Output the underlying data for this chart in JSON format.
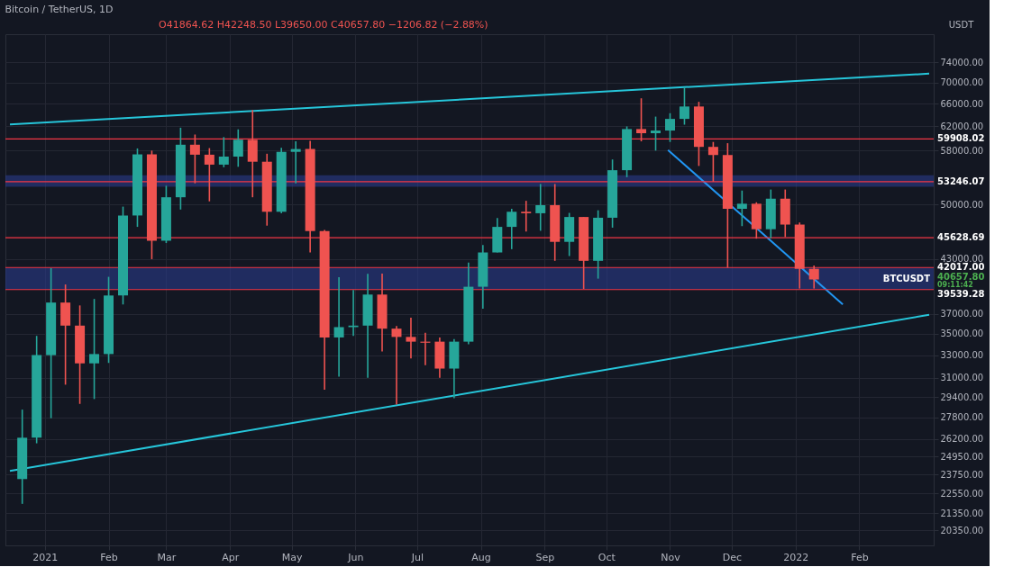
{
  "chart_data": {
    "type": "candlestick",
    "title": "Bitcoin / TetherUS, 1D",
    "ylabel": "USDT",
    "x": [
      "2020-12-21",
      "2020-12-28",
      "2021-01-04",
      "2021-01-11",
      "2021-01-18",
      "2021-01-25",
      "2021-02-01",
      "2021-02-08",
      "2021-02-15",
      "2021-02-22",
      "2021-03-01",
      "2021-03-08",
      "2021-03-15",
      "2021-03-22",
      "2021-03-29",
      "2021-04-05",
      "2021-04-12",
      "2021-04-19",
      "2021-04-26",
      "2021-05-03",
      "2021-05-10",
      "2021-05-17",
      "2021-05-24",
      "2021-05-31",
      "2021-06-07",
      "2021-06-14",
      "2021-06-21",
      "2021-06-28",
      "2021-07-05",
      "2021-07-12",
      "2021-07-19",
      "2021-07-26",
      "2021-08-02",
      "2021-08-09",
      "2021-08-16",
      "2021-08-23",
      "2021-08-30",
      "2021-09-06",
      "2021-09-13",
      "2021-09-20",
      "2021-09-27",
      "2021-10-04",
      "2021-10-11",
      "2021-10-18",
      "2021-10-25",
      "2021-11-01",
      "2021-11-08",
      "2021-11-15",
      "2021-11-22",
      "2021-11-29",
      "2021-12-06",
      "2021-12-13",
      "2021-12-20",
      "2021-12-27",
      "2022-01-03",
      "2022-01-10"
    ],
    "ohlc": [
      [
        23450,
        28400,
        21900,
        26280
      ],
      [
        26280,
        34800,
        25880,
        33000
      ],
      [
        33000,
        41950,
        27734,
        38150
      ],
      [
        38150,
        40100,
        30420,
        35800
      ],
      [
        35800,
        37850,
        28850,
        32260
      ],
      [
        32260,
        38530,
        29240,
        33100
      ],
      [
        33100,
        40955,
        32300,
        38900
      ],
      [
        38900,
        49700,
        37950,
        48500
      ],
      [
        48500,
        58350,
        47000,
        57400
      ],
      [
        57400,
        58000,
        43000,
        45240
      ],
      [
        45240,
        52640,
        44950,
        51000
      ],
      [
        51000,
        61780,
        49300,
        58950
      ],
      [
        58950,
        60630,
        53000,
        57350
      ],
      [
        57350,
        58400,
        50430,
        55800
      ],
      [
        55800,
        60200,
        55400,
        57050
      ],
      [
        57050,
        61500,
        55470,
        59750
      ],
      [
        59750,
        64850,
        51000,
        56250
      ],
      [
        56250,
        57500,
        47160,
        49000
      ],
      [
        49000,
        58450,
        48800,
        57800
      ],
      [
        57800,
        59500,
        53000,
        58250
      ],
      [
        58250,
        59600,
        43800,
        46450
      ],
      [
        46450,
        46600,
        30000,
        34650
      ],
      [
        34650,
        40900,
        31100,
        35650
      ],
      [
        35650,
        39500,
        34800,
        35800
      ],
      [
        35800,
        41300,
        31000,
        39000
      ],
      [
        39000,
        41330,
        33330,
        35500
      ],
      [
        35500,
        35750,
        28800,
        34700
      ],
      [
        34700,
        36600,
        32700,
        34250
      ],
      [
        34250,
        35100,
        32100,
        34150
      ],
      [
        34250,
        34650,
        31000,
        31800
      ],
      [
        31800,
        34500,
        29300,
        34250
      ],
      [
        34250,
        42600,
        34000,
        39850
      ],
      [
        39850,
        44700,
        37500,
        43800
      ],
      [
        43800,
        48150,
        43800,
        47000
      ],
      [
        47000,
        49400,
        44200,
        49000
      ],
      [
        49000,
        50500,
        46400,
        48800
      ],
      [
        48800,
        52900,
        46500,
        49900
      ],
      [
        49900,
        52900,
        42800,
        45100
      ],
      [
        45100,
        48850,
        43370,
        48300
      ],
      [
        48300,
        48300,
        39600,
        42800
      ],
      [
        42800,
        49200,
        40750,
        48200
      ],
      [
        48200,
        56600,
        46900,
        54950
      ],
      [
        54950,
        62000,
        53900,
        61550
      ],
      [
        61550,
        67000,
        59500,
        60850
      ],
      [
        60850,
        63700,
        58000,
        61300
      ],
      [
        61300,
        64300,
        59400,
        63300
      ],
      [
        63300,
        69000,
        62300,
        65500
      ],
      [
        65500,
        66350,
        55600,
        58600
      ],
      [
        58600,
        59400,
        53250,
        57300
      ],
      [
        57300,
        59200,
        42000,
        49400
      ],
      [
        49400,
        51950,
        47100,
        50100
      ],
      [
        50100,
        50300,
        45500,
        46700
      ],
      [
        46700,
        52100,
        45550,
        50800
      ],
      [
        50800,
        52100,
        45700,
        47300
      ],
      [
        47300,
        47570,
        39650,
        41864.62
      ],
      [
        41864.62,
        42248.5,
        39650,
        40657.8
      ]
    ],
    "series": [
      {
        "type": "line",
        "x": [
          "2020-12-15",
          "2022-03-07"
        ],
        "values": [
          62330,
          71710
        ],
        "color": "#26c6da"
      },
      {
        "type": "line",
        "x": [
          "2020-12-15",
          "2022-03-07"
        ],
        "values": [
          23980,
          36880
        ],
        "color": "#26c6da"
      },
      {
        "type": "line",
        "x": [
          "2021-10-31",
          "2022-01-24"
        ],
        "values": [
          58100,
          37960
        ],
        "color": "#2196f3"
      }
    ],
    "xlim": [
      "2020-12-15",
      "2022-03-07"
    ],
    "xticks": [
      {
        "value": "2021-01-01",
        "label": "2021"
      },
      {
        "value": "2021-02-01",
        "label": "Feb"
      },
      {
        "value": "2021-03-01",
        "label": "Mar"
      },
      {
        "value": "2021-04-01",
        "label": "Apr"
      },
      {
        "value": "2021-05-01",
        "label": "May"
      },
      {
        "value": "2021-06-01",
        "label": "Jun"
      },
      {
        "value": "2021-07-01",
        "label": "Jul"
      },
      {
        "value": "2021-08-01",
        "label": "Aug"
      },
      {
        "value": "2021-09-01",
        "label": "Sep"
      },
      {
        "value": "2021-10-01",
        "label": "Oct"
      },
      {
        "value": "2021-11-01",
        "label": "Nov"
      },
      {
        "value": "2021-12-01",
        "label": "Dec"
      },
      {
        "value": "2022-01-01",
        "label": "2022"
      },
      {
        "value": "2022-02-01",
        "label": "Feb"
      }
    ],
    "ylim": [
      19530,
      79950
    ],
    "log": true,
    "yticks": [
      {
        "value": 20350,
        "label": "20350.00"
      },
      {
        "value": 21350,
        "label": "21350.00"
      },
      {
        "value": 22550,
        "label": "22550.00"
      },
      {
        "value": 23750,
        "label": "23750.00"
      },
      {
        "value": 24950,
        "label": "24950.00"
      },
      {
        "value": 26200,
        "label": "26200.00"
      },
      {
        "value": 27800,
        "label": "27800.00"
      },
      {
        "value": 29400,
        "label": "29400.00"
      },
      {
        "value": 31000,
        "label": "31000.00"
      },
      {
        "value": 33000,
        "label": "33000.00"
      },
      {
        "value": 35000,
        "label": "35000.00"
      },
      {
        "value": 37000,
        "label": "37000.00"
      },
      {
        "value": 43000,
        "label": "43000.00"
      },
      {
        "value": 50000,
        "label": "50000.00"
      },
      {
        "value": 58000,
        "label": "58000.00"
      },
      {
        "value": 62000,
        "label": "62000.00"
      },
      {
        "value": 66000,
        "label": "66000.00"
      },
      {
        "value": 70000,
        "label": "70000.00"
      },
      {
        "value": 74000,
        "label": "74000.00"
      }
    ],
    "grid": true,
    "ref_lines": [
      {
        "axis": "y",
        "value": 59908.02,
        "label": "59908.02",
        "color": "#f23645"
      },
      {
        "axis": "y",
        "value": 53246.07,
        "label": "53246.07",
        "color": "#f23645"
      },
      {
        "axis": "y",
        "value": 45628.69,
        "label": "45628.69",
        "color": "#f23645"
      },
      {
        "axis": "y",
        "value": 42017.0,
        "label": "42017.00",
        "color": "#f23645"
      },
      {
        "axis": "y",
        "value": 39539.28,
        "label": "39539.28",
        "color": "#f23645"
      }
    ],
    "bands": [
      {
        "axis": "y",
        "from": 39539.28,
        "to": 42017.0,
        "color": "#2a3a8a"
      },
      {
        "axis": "y",
        "from": 52500,
        "to": 54200,
        "color": "#2a3a8a"
      }
    ],
    "annotations": [
      "O41864.62 H42248.50 L39650.00 C40657.80 −1206.82 (−2.88%)",
      "BTCUSDT",
      "40657.80",
      "09:11:42"
    ]
  }
}
